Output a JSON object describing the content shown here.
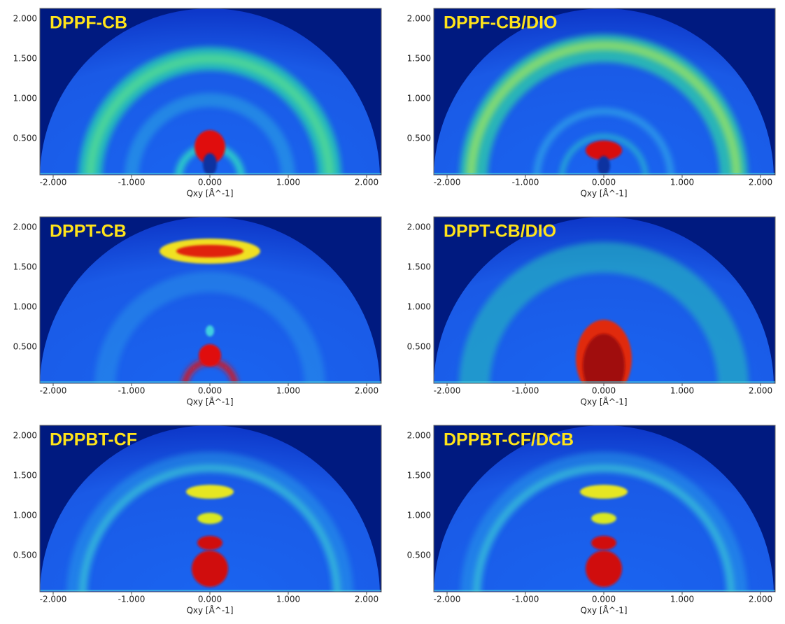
{
  "panels": [
    {
      "label": "DPPF-CB",
      "x_label": "Qxy [Å^-1]"
    },
    {
      "label": "DPPF-CB/DIO",
      "x_label": "Qxy [Å^-1]"
    },
    {
      "label": "DPPT-CB",
      "x_label": "Qxy [Å^-1]"
    },
    {
      "label": "DPPT-CB/DIO",
      "x_label": "Qxy [Å^-1]"
    },
    {
      "label": "DPPBT-CF",
      "x_label": "Qxy [Å^-1]"
    },
    {
      "label": "DPPBT-CF/DCB",
      "x_label": "Qxy [Å^-1]"
    }
  ],
  "y_ticks": [
    "2.000",
    "1.500",
    "1.000",
    "0.500"
  ],
  "x_ticks": [
    "-2.000",
    "-1.000",
    "0.000",
    "1.000",
    "2.000"
  ]
}
